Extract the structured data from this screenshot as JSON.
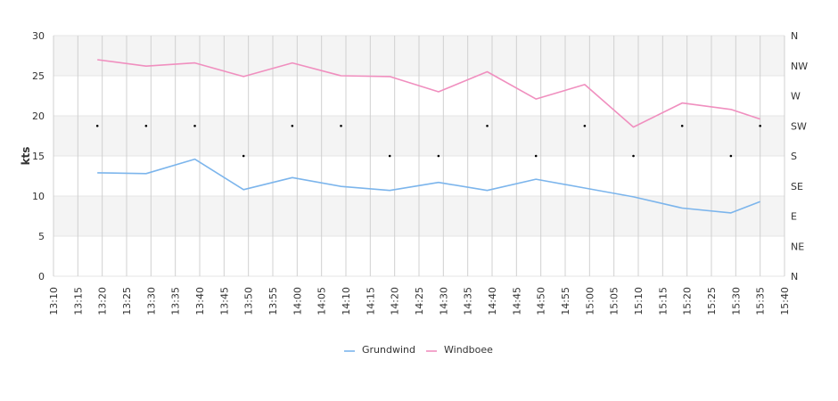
{
  "chart_data": {
    "type": "line",
    "ylabel": "kts",
    "ylim": [
      0,
      30
    ],
    "y_ticks": [
      "0",
      "5",
      "10",
      "15",
      "20",
      "25",
      "30"
    ],
    "x_ticks": [
      "13:10",
      "13:15",
      "13:20",
      "13:25",
      "13:30",
      "13:35",
      "13:40",
      "13:45",
      "13:50",
      "13:55",
      "14:00",
      "14:05",
      "14:10",
      "14:15",
      "14:20",
      "14:25",
      "14:30",
      "14:35",
      "14:40",
      "14:45",
      "14:50",
      "14:55",
      "15:00",
      "15:05",
      "15:10",
      "15:15",
      "15:20",
      "15:25",
      "15:30",
      "15:35",
      "15:40"
    ],
    "xlim": [
      "13:10",
      "15:40"
    ],
    "direction_axis": [
      "N",
      "NW",
      "W",
      "SW",
      "S",
      "SE",
      "E",
      "NE",
      "N"
    ],
    "x": [
      "13:19",
      "13:29",
      "13:39",
      "13:49",
      "13:59",
      "14:09",
      "14:19",
      "14:29",
      "14:39",
      "14:49",
      "14:59",
      "15:09",
      "15:19",
      "15:29",
      "15:35"
    ],
    "series": [
      {
        "name": "Grundwind",
        "color": "#7cb5ec",
        "values": [
          12.9,
          12.8,
          14.6,
          10.8,
          12.3,
          11.2,
          10.7,
          11.7,
          10.7,
          12.1,
          11.0,
          9.9,
          8.5,
          7.9,
          9.3
        ]
      },
      {
        "name": "Windboee",
        "color": "#f08fbf",
        "values": [
          27.0,
          26.2,
          26.6,
          24.9,
          26.6,
          25.0,
          24.9,
          23.0,
          25.5,
          22.1,
          23.9,
          18.6,
          21.6,
          20.8,
          19.6
        ]
      }
    ],
    "direction_points": {
      "x": [
        "13:19",
        "13:29",
        "13:39",
        "13:49",
        "13:59",
        "14:09",
        "14:19",
        "14:29",
        "14:39",
        "14:49",
        "14:59",
        "15:09",
        "15:19",
        "15:29",
        "15:35"
      ],
      "values": [
        "SW",
        "SW",
        "SW",
        "S",
        "SW",
        "SW",
        "S",
        "S",
        "SW",
        "S",
        "SW",
        "S",
        "SW",
        "S",
        "SW"
      ]
    },
    "legend": "bottom-center",
    "grid": true
  }
}
